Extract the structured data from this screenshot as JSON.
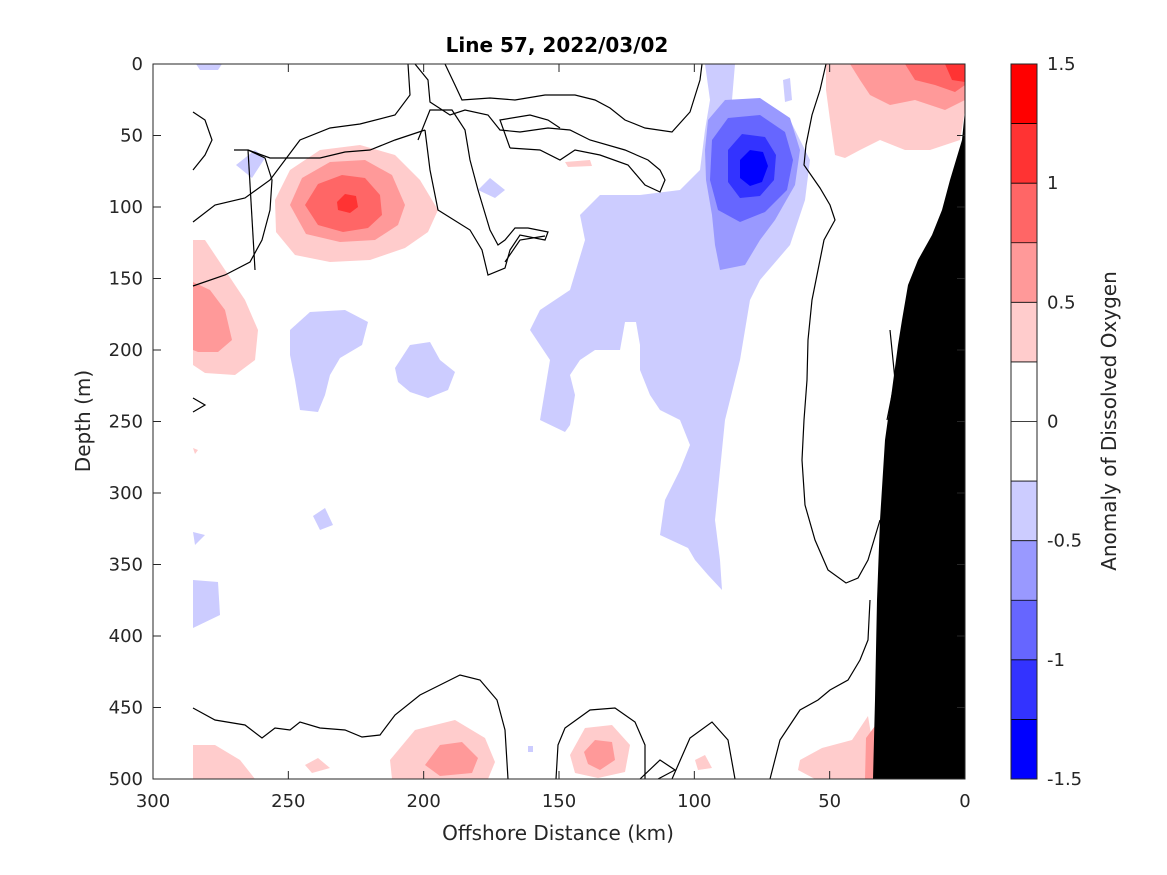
{
  "chart_data": {
    "type": "heatmap",
    "title": "Line 57, 2022/03/02",
    "xlabel": "Offshore Distance (km)",
    "ylabel": "Depth (m)",
    "colorbar_label": "Anomaly of Dissolved Oxygen",
    "xlim": [
      300,
      0
    ],
    "ylim": [
      0,
      500
    ],
    "x_reversed": true,
    "y_reversed": true,
    "x_ticks": [
      300,
      250,
      200,
      150,
      100,
      50,
      0
    ],
    "y_ticks": [
      0,
      50,
      100,
      150,
      200,
      250,
      300,
      350,
      400,
      450,
      500
    ],
    "clim": [
      -1.5,
      1.5
    ],
    "colorbar_ticks": [
      1.5,
      1,
      0.5,
      0,
      -0.5,
      -1,
      -1.5
    ],
    "colorbar_levels": [
      {
        "range": [
          1.25,
          1.5
        ],
        "color": "#ff0000"
      },
      {
        "range": [
          1.0,
          1.25
        ],
        "color": "#ff3333"
      },
      {
        "range": [
          0.75,
          1.0
        ],
        "color": "#ff6666"
      },
      {
        "range": [
          0.5,
          0.75
        ],
        "color": "#ff9999"
      },
      {
        "range": [
          0.25,
          0.5
        ],
        "color": "#ffcccc"
      },
      {
        "range": [
          0.0,
          0.25
        ],
        "color": "#ffffff"
      },
      {
        "range": [
          -0.25,
          0.0
        ],
        "color": "#ffffff"
      },
      {
        "range": [
          -0.5,
          -0.25
        ],
        "color": "#ccccff"
      },
      {
        "range": [
          -0.75,
          -0.5
        ],
        "color": "#9999ff"
      },
      {
        "range": [
          -1.0,
          -0.75
        ],
        "color": "#6666ff"
      },
      {
        "range": [
          -1.25,
          -1.0
        ],
        "color": "#3333ff"
      },
      {
        "range": [
          -1.5,
          -1.25
        ],
        "color": "#0000ff"
      }
    ],
    "features": [
      {
        "name": "positive-anomaly-core",
        "x": 227,
        "depth": 95,
        "peak": 1.1
      },
      {
        "name": "negative-anomaly-core",
        "x": 80,
        "depth": 75,
        "peak": -1.2
      },
      {
        "name": "coastal-positive-anomaly",
        "x": 5,
        "depth": 5,
        "peak": 1.25
      },
      {
        "name": "bottom-positive-anomaly",
        "x": 135,
        "depth": 485,
        "peak": 0.6
      }
    ],
    "grid": false,
    "bathymetry_mask_color": "#000000"
  }
}
